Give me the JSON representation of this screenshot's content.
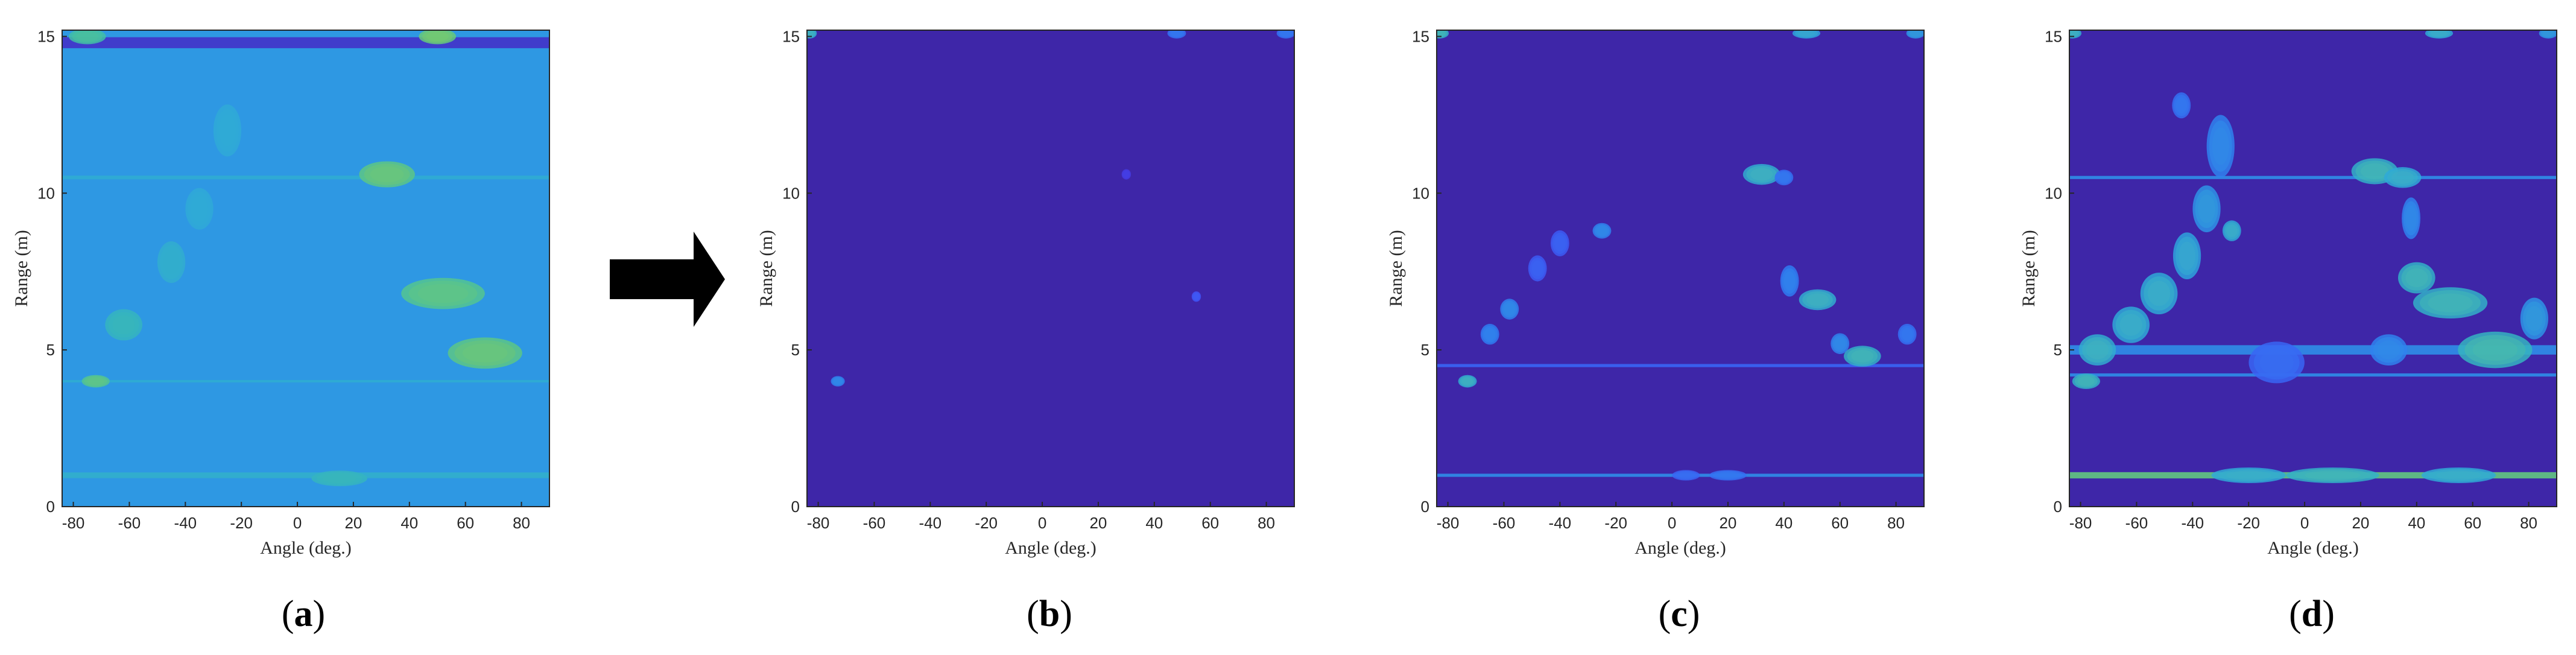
{
  "figure": {
    "arrow_color": "#000000"
  },
  "colormap": [
    "#3e26a8",
    "#4743f8",
    "#2f7cf2",
    "#2ea8da",
    "#39bcb0",
    "#6ccb73",
    "#b8c43a",
    "#f5cf25",
    "#f9fb0e"
  ],
  "chart_data": [
    {
      "type": "heatmap",
      "panel": "(a)",
      "panel_letter": "a",
      "xlabel": "Angle (deg.)",
      "ylabel": "Range (m)",
      "xlim": [
        -84,
        90
      ],
      "ylim": [
        0,
        15.2
      ],
      "xticks": [
        -80,
        -60,
        -40,
        -20,
        0,
        20,
        40,
        60,
        80
      ],
      "yticks": [
        0,
        5,
        10,
        15
      ],
      "background_level": 0.33,
      "bands": [
        {
          "range": 14.8,
          "level": 0.05,
          "width": 0.35
        },
        {
          "range": 10.5,
          "level": 0.4,
          "width": 0.12
        },
        {
          "range": 4.0,
          "level": 0.4,
          "width": 0.08
        },
        {
          "range": 1.0,
          "level": 0.42,
          "width": 0.18
        }
      ],
      "blobs": [
        {
          "angle": 32,
          "range": 10.6,
          "level": 0.9,
          "sa": 6,
          "sr": 0.25
        },
        {
          "angle": 52,
          "range": 6.8,
          "level": 0.85,
          "sa": 9,
          "sr": 0.3
        },
        {
          "angle": 67,
          "range": 4.9,
          "level": 0.9,
          "sa": 8,
          "sr": 0.3
        },
        {
          "angle": -72,
          "range": 4.0,
          "level": 0.85,
          "sa": 3,
          "sr": 0.12
        },
        {
          "angle": -62,
          "range": 5.8,
          "level": 0.6,
          "sa": 4,
          "sr": 0.3
        },
        {
          "angle": -45,
          "range": 7.8,
          "level": 0.5,
          "sa": 3,
          "sr": 0.4
        },
        {
          "angle": -35,
          "range": 9.5,
          "level": 0.45,
          "sa": 3,
          "sr": 0.4
        },
        {
          "angle": -25,
          "range": 12.0,
          "level": 0.45,
          "sa": 3,
          "sr": 0.5
        },
        {
          "angle": 15,
          "range": 0.9,
          "level": 0.6,
          "sa": 6,
          "sr": 0.15
        },
        {
          "angle": 50,
          "range": 15.0,
          "level": 0.95,
          "sa": 4,
          "sr": 0.15
        },
        {
          "angle": -75,
          "range": 15.0,
          "level": 0.75,
          "sa": 4,
          "sr": 0.15
        }
      ]
    },
    {
      "type": "heatmap",
      "panel": "(b)",
      "panel_letter": "b",
      "xlabel": "Angle (deg.)",
      "ylabel": "Range (m)",
      "xlim": [
        -84,
        90
      ],
      "ylim": [
        0,
        15.2
      ],
      "xticks": [
        -80,
        -60,
        -40,
        -20,
        0,
        20,
        40,
        60,
        80
      ],
      "yticks": [
        0,
        5,
        10,
        15
      ],
      "background_level": 0.0,
      "bands": [],
      "blobs": [
        {
          "angle": -73,
          "range": 4.0,
          "level": 0.6,
          "sa": 1.5,
          "sr": 0.1
        },
        {
          "angle": 55,
          "range": 6.7,
          "level": 0.35,
          "sa": 1,
          "sr": 0.1
        },
        {
          "angle": 30,
          "range": 10.6,
          "level": 0.2,
          "sa": 1,
          "sr": 0.1
        },
        {
          "angle": -83,
          "range": 15.1,
          "level": 0.9,
          "sa": 1.5,
          "sr": 0.1
        },
        {
          "angle": 48,
          "range": 15.1,
          "level": 0.5,
          "sa": 2,
          "sr": 0.1
        },
        {
          "angle": 87,
          "range": 15.1,
          "level": 0.5,
          "sa": 2,
          "sr": 0.1
        }
      ]
    },
    {
      "type": "heatmap",
      "panel": "(c)",
      "panel_letter": "c",
      "xlabel": "Angle (deg.)",
      "ylabel": "Range (m)",
      "xlim": [
        -84,
        90
      ],
      "ylim": [
        0,
        15.2
      ],
      "xticks": [
        -80,
        -60,
        -40,
        -20,
        0,
        20,
        40,
        60,
        80
      ],
      "yticks": [
        0,
        5,
        10,
        15
      ],
      "background_level": 0.0,
      "bands": [
        {
          "range": 1.0,
          "level": 0.3,
          "width": 0.1
        },
        {
          "range": 4.5,
          "level": 0.2,
          "width": 0.1
        }
      ],
      "blobs": [
        {
          "angle": -73,
          "range": 4.0,
          "level": 0.9,
          "sa": 2,
          "sr": 0.12
        },
        {
          "angle": -65,
          "range": 5.5,
          "level": 0.55,
          "sa": 2,
          "sr": 0.2
        },
        {
          "angle": -58,
          "range": 6.3,
          "level": 0.6,
          "sa": 2,
          "sr": 0.2
        },
        {
          "angle": -48,
          "range": 7.6,
          "level": 0.4,
          "sa": 2,
          "sr": 0.25
        },
        {
          "angle": -40,
          "range": 8.4,
          "level": 0.4,
          "sa": 2,
          "sr": 0.25
        },
        {
          "angle": -25,
          "range": 8.8,
          "level": 0.6,
          "sa": 2,
          "sr": 0.15
        },
        {
          "angle": 32,
          "range": 10.6,
          "level": 0.9,
          "sa": 4,
          "sr": 0.2
        },
        {
          "angle": 40,
          "range": 10.5,
          "level": 0.5,
          "sa": 2,
          "sr": 0.15
        },
        {
          "angle": 52,
          "range": 6.6,
          "level": 0.9,
          "sa": 4,
          "sr": 0.2
        },
        {
          "angle": 42,
          "range": 7.2,
          "level": 0.55,
          "sa": 2,
          "sr": 0.3
        },
        {
          "angle": 68,
          "range": 4.8,
          "level": 0.95,
          "sa": 4,
          "sr": 0.2
        },
        {
          "angle": 60,
          "range": 5.2,
          "level": 0.6,
          "sa": 2,
          "sr": 0.2
        },
        {
          "angle": 84,
          "range": 5.5,
          "level": 0.5,
          "sa": 2,
          "sr": 0.2
        },
        {
          "angle": 20,
          "range": 1.0,
          "level": 0.5,
          "sa": 4,
          "sr": 0.1
        },
        {
          "angle": 5,
          "range": 1.0,
          "level": 0.45,
          "sa": 3,
          "sr": 0.1
        },
        {
          "angle": -83,
          "range": 15.1,
          "level": 0.95,
          "sa": 2,
          "sr": 0.1
        },
        {
          "angle": 48,
          "range": 15.1,
          "level": 0.8,
          "sa": 3,
          "sr": 0.1
        },
        {
          "angle": 87,
          "range": 15.1,
          "level": 0.7,
          "sa": 2,
          "sr": 0.1
        }
      ]
    },
    {
      "type": "heatmap",
      "panel": "(d)",
      "panel_letter": "d",
      "xlabel": "Angle (deg.)",
      "ylabel": "Range (m)",
      "xlim": [
        -84,
        90
      ],
      "ylim": [
        0,
        15.2
      ],
      "xticks": [
        -80,
        -60,
        -40,
        -20,
        0,
        20,
        40,
        60,
        80
      ],
      "yticks": [
        0,
        5,
        10,
        15
      ],
      "background_level": 0.0,
      "bands": [
        {
          "range": 1.0,
          "level": 0.6,
          "width": 0.2
        },
        {
          "range": 4.2,
          "level": 0.3,
          "width": 0.1
        },
        {
          "range": 5.0,
          "level": 0.3,
          "width": 0.3
        },
        {
          "range": 10.5,
          "level": 0.3,
          "width": 0.1
        }
      ],
      "blobs": [
        {
          "angle": -78,
          "range": 4.0,
          "level": 0.95,
          "sa": 3,
          "sr": 0.15
        },
        {
          "angle": -74,
          "range": 5.0,
          "level": 0.9,
          "sa": 4,
          "sr": 0.3
        },
        {
          "angle": -62,
          "range": 5.8,
          "level": 0.85,
          "sa": 4,
          "sr": 0.35
        },
        {
          "angle": -52,
          "range": 6.8,
          "level": 0.85,
          "sa": 4,
          "sr": 0.4
        },
        {
          "angle": -42,
          "range": 8.0,
          "level": 0.8,
          "sa": 3,
          "sr": 0.45
        },
        {
          "angle": -35,
          "range": 9.5,
          "level": 0.7,
          "sa": 3,
          "sr": 0.45
        },
        {
          "angle": -30,
          "range": 11.5,
          "level": 0.6,
          "sa": 3,
          "sr": 0.6
        },
        {
          "angle": -44,
          "range": 12.8,
          "level": 0.5,
          "sa": 2,
          "sr": 0.25
        },
        {
          "angle": -26,
          "range": 8.8,
          "level": 0.85,
          "sa": 2,
          "sr": 0.2
        },
        {
          "angle": 25,
          "range": 10.7,
          "level": 0.95,
          "sa": 5,
          "sr": 0.25
        },
        {
          "angle": 35,
          "range": 10.5,
          "level": 0.85,
          "sa": 4,
          "sr": 0.2
        },
        {
          "angle": 38,
          "range": 9.2,
          "level": 0.6,
          "sa": 2,
          "sr": 0.4
        },
        {
          "angle": 40,
          "range": 7.3,
          "level": 0.95,
          "sa": 4,
          "sr": 0.3
        },
        {
          "angle": 52,
          "range": 6.5,
          "level": 0.95,
          "sa": 8,
          "sr": 0.3
        },
        {
          "angle": 68,
          "range": 5.0,
          "level": 1.0,
          "sa": 8,
          "sr": 0.35
        },
        {
          "angle": 82,
          "range": 6.0,
          "level": 0.7,
          "sa": 3,
          "sr": 0.4
        },
        {
          "angle": 30,
          "range": 5.0,
          "level": 0.6,
          "sa": 4,
          "sr": 0.3
        },
        {
          "angle": -10,
          "range": 4.6,
          "level": 0.45,
          "sa": 6,
          "sr": 0.4
        },
        {
          "angle": 10,
          "range": 1.0,
          "level": 0.95,
          "sa": 10,
          "sr": 0.15
        },
        {
          "angle": -20,
          "range": 1.0,
          "level": 0.85,
          "sa": 8,
          "sr": 0.15
        },
        {
          "angle": 55,
          "range": 1.0,
          "level": 0.85,
          "sa": 8,
          "sr": 0.15
        },
        {
          "angle": -83,
          "range": 15.1,
          "level": 0.9,
          "sa": 2,
          "sr": 0.1
        },
        {
          "angle": 48,
          "range": 15.1,
          "level": 0.85,
          "sa": 3,
          "sr": 0.1
        },
        {
          "angle": 87,
          "range": 15.1,
          "level": 0.7,
          "sa": 2,
          "sr": 0.1
        }
      ]
    }
  ]
}
